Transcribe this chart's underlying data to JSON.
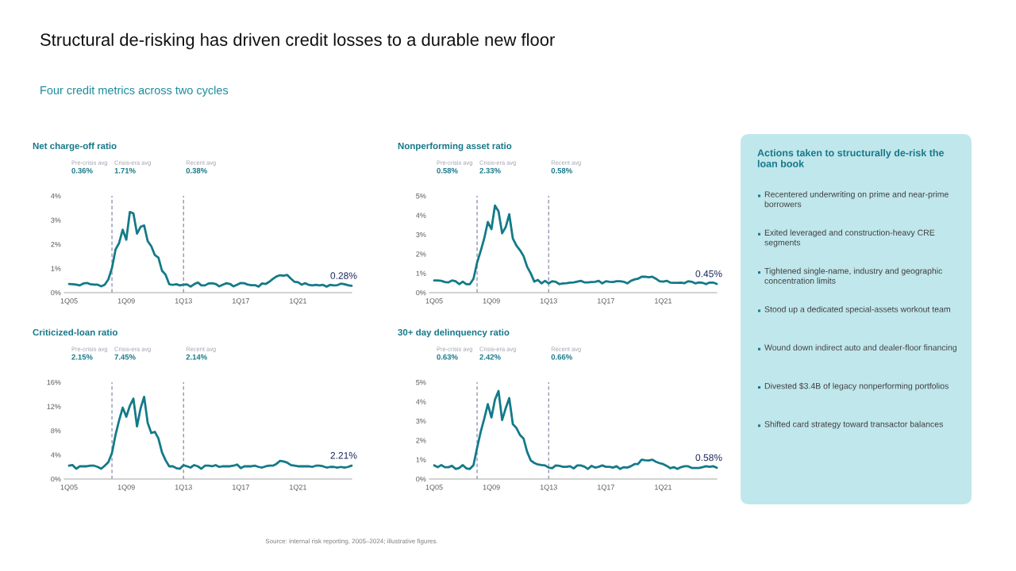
{
  "chart_data": [
    {
      "type": "other",
      "title": "Structural de-risking has driven credit losses to a durable new floor",
      "subtitle": "Four credit metrics across two cycles",
      "annotations": [
        "Source: internal risk reporting, 2005–2024; illustrative figures."
      ]
    },
    {
      "type": "line",
      "title": "Net charge-off ratio",
      "x": [
        "2005-01",
        "2005-04",
        "2005-07",
        "2005-10",
        "2006-01",
        "2006-04",
        "2006-07",
        "2006-10",
        "2007-01",
        "2007-04",
        "2007-07",
        "2007-10",
        "2008-01",
        "2008-04",
        "2008-07",
        "2008-10",
        "2009-01",
        "2009-04",
        "2009-07",
        "2009-10",
        "2010-01",
        "2010-04",
        "2010-07",
        "2010-10",
        "2011-01",
        "2011-04",
        "2011-07",
        "2011-10",
        "2012-01",
        "2012-04",
        "2012-07",
        "2012-10",
        "2013-01",
        "2013-04",
        "2013-07",
        "2013-10",
        "2014-01",
        "2014-04",
        "2014-07",
        "2014-10",
        "2015-01",
        "2015-04",
        "2015-07",
        "2015-10",
        "2016-01",
        "2016-04",
        "2016-07",
        "2016-10",
        "2017-01",
        "2017-04",
        "2017-07",
        "2017-10",
        "2018-01",
        "2018-04",
        "2018-07",
        "2018-10",
        "2019-01",
        "2019-04",
        "2019-07",
        "2019-10",
        "2020-01",
        "2020-04",
        "2020-07",
        "2020-10",
        "2021-01",
        "2021-04",
        "2021-07",
        "2021-10",
        "2022-01",
        "2022-04",
        "2022-07",
        "2022-10",
        "2023-01",
        "2023-04",
        "2023-07",
        "2023-10",
        "2024-01",
        "2024-04",
        "2024-07",
        "2024-10"
      ],
      "values": [
        0.36,
        0.35,
        0.33,
        0.3,
        0.38,
        0.4,
        0.35,
        0.33,
        0.33,
        0.26,
        0.33,
        0.55,
        1.02,
        1.78,
        2.05,
        2.6,
        2.19,
        3.33,
        3.28,
        2.44,
        2.72,
        2.78,
        2.13,
        1.92,
        1.55,
        1.45,
        0.91,
        0.74,
        0.35,
        0.32,
        0.35,
        0.3,
        0.33,
        0.34,
        0.25,
        0.35,
        0.42,
        0.3,
        0.3,
        0.38,
        0.39,
        0.36,
        0.26,
        0.33,
        0.39,
        0.36,
        0.26,
        0.33,
        0.4,
        0.39,
        0.33,
        0.31,
        0.31,
        0.25,
        0.38,
        0.36,
        0.45,
        0.57,
        0.67,
        0.72,
        0.7,
        0.73,
        0.58,
        0.45,
        0.43,
        0.33,
        0.39,
        0.32,
        0.3,
        0.32,
        0.3,
        0.32,
        0.25,
        0.32,
        0.3,
        0.31,
        0.37,
        0.35,
        0.31,
        0.28
      ],
      "color": "#137a88",
      "xlim": [
        "2004-09",
        "2024-10"
      ],
      "xticks": [
        {
          "value": "2005-01",
          "label": "1Q05"
        },
        {
          "value": "2009-01",
          "label": "1Q09"
        },
        {
          "value": "2013-01",
          "label": "1Q13"
        },
        {
          "value": "2017-01",
          "label": "1Q17"
        },
        {
          "value": "2021-01",
          "label": "1Q21"
        }
      ],
      "ylim": [
        0,
        4
      ],
      "yticks": [
        {
          "value": 0,
          "label": "0%"
        },
        {
          "value": 1,
          "label": "1%"
        },
        {
          "value": 2,
          "label": "2%"
        },
        {
          "value": 3,
          "label": "3%"
        },
        {
          "value": 4,
          "label": "4%"
        }
      ],
      "ref_lines": [
        {
          "axis": "x",
          "value": "2008-01",
          "color": "#8a8aa6",
          "line_style": "dashed"
        },
        {
          "axis": "x",
          "value": "2013-01",
          "color": "#8a8aa6",
          "line_style": "dashed"
        }
      ],
      "annotations": [
        "Pre-crisis avg",
        "0.36%",
        "Crisis-era avg",
        "1.71%",
        "Recent avg",
        "0.38%",
        {
          "text": "0.28%",
          "x": "2024-10",
          "y": 0.28
        }
      ]
    },
    {
      "type": "line",
      "title": "Nonperforming asset ratio",
      "x": [
        "2005-01",
        "2005-04",
        "2005-07",
        "2005-10",
        "2006-01",
        "2006-04",
        "2006-07",
        "2006-10",
        "2007-01",
        "2007-04",
        "2007-07",
        "2007-10",
        "2008-01",
        "2008-04",
        "2008-07",
        "2008-10",
        "2009-01",
        "2009-04",
        "2009-07",
        "2009-10",
        "2010-01",
        "2010-04",
        "2010-07",
        "2010-10",
        "2011-01",
        "2011-04",
        "2011-07",
        "2011-10",
        "2012-01",
        "2012-04",
        "2012-07",
        "2012-10",
        "2013-01",
        "2013-04",
        "2013-07",
        "2013-10",
        "2014-01",
        "2014-04",
        "2014-07",
        "2014-10",
        "2015-01",
        "2015-04",
        "2015-07",
        "2015-10",
        "2016-01",
        "2016-04",
        "2016-07",
        "2016-10",
        "2017-01",
        "2017-04",
        "2017-07",
        "2017-10",
        "2018-01",
        "2018-04",
        "2018-07",
        "2018-10",
        "2019-01",
        "2019-04",
        "2019-07",
        "2019-10",
        "2020-01",
        "2020-04",
        "2020-07",
        "2020-10",
        "2021-01",
        "2021-04",
        "2021-07",
        "2021-10",
        "2022-01",
        "2022-04",
        "2022-07",
        "2022-10",
        "2023-01",
        "2023-04",
        "2023-07",
        "2023-10",
        "2024-01",
        "2024-04",
        "2024-07",
        "2024-10"
      ],
      "values": [
        0.63,
        0.63,
        0.61,
        0.55,
        0.53,
        0.63,
        0.59,
        0.44,
        0.57,
        0.44,
        0.44,
        0.72,
        1.55,
        2.15,
        2.8,
        3.65,
        3.28,
        4.5,
        4.2,
        3.07,
        3.39,
        4.05,
        2.8,
        2.43,
        2.19,
        1.89,
        1.34,
        1.0,
        0.57,
        0.66,
        0.48,
        0.61,
        0.48,
        0.59,
        0.56,
        0.44,
        0.48,
        0.49,
        0.52,
        0.53,
        0.57,
        0.61,
        0.53,
        0.53,
        0.55,
        0.56,
        0.61,
        0.48,
        0.59,
        0.56,
        0.55,
        0.59,
        0.59,
        0.56,
        0.48,
        0.61,
        0.68,
        0.72,
        0.82,
        0.82,
        0.79,
        0.82,
        0.72,
        0.59,
        0.57,
        0.61,
        0.52,
        0.51,
        0.51,
        0.52,
        0.49,
        0.59,
        0.56,
        0.48,
        0.53,
        0.51,
        0.44,
        0.52,
        0.52,
        0.45
      ],
      "color": "#137a88",
      "xlim": [
        "2004-09",
        "2024-10"
      ],
      "xticks": [
        {
          "value": "2005-01",
          "label": "1Q05"
        },
        {
          "value": "2009-01",
          "label": "1Q09"
        },
        {
          "value": "2013-01",
          "label": "1Q13"
        },
        {
          "value": "2017-01",
          "label": "1Q17"
        },
        {
          "value": "2021-01",
          "label": "1Q21"
        }
      ],
      "ylim": [
        0,
        5
      ],
      "yticks": [
        {
          "value": 0,
          "label": "0%"
        },
        {
          "value": 1,
          "label": "1%"
        },
        {
          "value": 2,
          "label": "2%"
        },
        {
          "value": 3,
          "label": "3%"
        },
        {
          "value": 4,
          "label": "4%"
        },
        {
          "value": 5,
          "label": "5%"
        }
      ],
      "ref_lines": [
        {
          "axis": "x",
          "value": "2008-01",
          "color": "#8a8aa6",
          "line_style": "dashed"
        },
        {
          "axis": "x",
          "value": "2013-01",
          "color": "#8a8aa6",
          "line_style": "dashed"
        }
      ],
      "annotations": [
        "Pre-crisis avg",
        "0.58%",
        "Crisis-era avg",
        "2.33%",
        "Recent avg",
        "0.58%",
        {
          "text": "0.45%",
          "x": "2024-10",
          "y": 0.45
        }
      ]
    },
    {
      "type": "line",
      "title": "Criticized-loan ratio",
      "x": [
        "2005-01",
        "2005-04",
        "2005-07",
        "2005-10",
        "2006-01",
        "2006-04",
        "2006-07",
        "2006-10",
        "2007-01",
        "2007-04",
        "2007-07",
        "2007-10",
        "2008-01",
        "2008-04",
        "2008-07",
        "2008-10",
        "2009-01",
        "2009-04",
        "2009-07",
        "2009-10",
        "2010-01",
        "2010-04",
        "2010-07",
        "2010-10",
        "2011-01",
        "2011-04",
        "2011-07",
        "2011-10",
        "2012-01",
        "2012-04",
        "2012-07",
        "2012-10",
        "2013-01",
        "2013-04",
        "2013-07",
        "2013-10",
        "2014-01",
        "2014-04",
        "2014-07",
        "2014-10",
        "2015-01",
        "2015-04",
        "2015-07",
        "2015-10",
        "2016-01",
        "2016-04",
        "2016-07",
        "2016-10",
        "2017-01",
        "2017-04",
        "2017-07",
        "2017-10",
        "2018-01",
        "2018-04",
        "2018-07",
        "2018-10",
        "2019-01",
        "2019-04",
        "2019-07",
        "2019-10",
        "2020-01",
        "2020-04",
        "2020-07",
        "2020-10",
        "2021-01",
        "2021-04",
        "2021-07",
        "2021-10",
        "2022-01",
        "2022-04",
        "2022-07",
        "2022-10",
        "2023-01",
        "2023-04",
        "2023-07",
        "2023-10",
        "2024-01",
        "2024-04",
        "2024-07",
        "2024-10"
      ],
      "values": [
        2.2,
        2.3,
        1.7,
        2.1,
        2.1,
        2.1,
        2.2,
        2.2,
        2.0,
        1.7,
        2.2,
        2.8,
        4.3,
        7.3,
        9.7,
        11.8,
        10.3,
        12.1,
        13.3,
        8.7,
        11.7,
        13.6,
        9.3,
        7.6,
        7.8,
        6.7,
        4.4,
        3.1,
        2.1,
        2.1,
        1.8,
        1.7,
        2.3,
        2.1,
        1.9,
        2.3,
        2.1,
        1.7,
        2.2,
        2.2,
        2.1,
        2.3,
        2.0,
        2.1,
        2.1,
        2.1,
        2.2,
        2.4,
        1.8,
        2.1,
        2.1,
        2.1,
        2.2,
        2.0,
        1.9,
        2.1,
        2.2,
        2.2,
        2.5,
        3.0,
        2.9,
        2.7,
        2.3,
        2.2,
        2.1,
        2.1,
        2.1,
        2.1,
        2.0,
        2.2,
        2.2,
        2.1,
        1.9,
        2.0,
        2.0,
        1.9,
        2.0,
        1.9,
        2.0,
        2.21
      ],
      "color": "#137a88",
      "xlim": [
        "2004-09",
        "2024-10"
      ],
      "xticks": [
        {
          "value": "2005-01",
          "label": "1Q05"
        },
        {
          "value": "2009-01",
          "label": "1Q09"
        },
        {
          "value": "2013-01",
          "label": "1Q13"
        },
        {
          "value": "2017-01",
          "label": "1Q17"
        },
        {
          "value": "2021-01",
          "label": "1Q21"
        }
      ],
      "ylim": [
        0,
        16
      ],
      "yticks": [
        {
          "value": 0,
          "label": "0%"
        },
        {
          "value": 4,
          "label": "4%"
        },
        {
          "value": 8,
          "label": "8%"
        },
        {
          "value": 12,
          "label": "12%"
        },
        {
          "value": 16,
          "label": "16%"
        }
      ],
      "ref_lines": [
        {
          "axis": "x",
          "value": "2008-01",
          "color": "#8a8aa6",
          "line_style": "dashed"
        },
        {
          "axis": "x",
          "value": "2013-01",
          "color": "#8a8aa6",
          "line_style": "dashed"
        }
      ],
      "annotations": [
        "Pre-crisis avg",
        "2.15%",
        "Crisis-era avg",
        "7.45%",
        "Recent avg",
        "2.14%",
        {
          "text": "2.21%",
          "x": "2024-10",
          "y": 2.21
        }
      ]
    },
    {
      "type": "line",
      "title": "30+ day delinquency ratio",
      "x": [
        "2005-01",
        "2005-04",
        "2005-07",
        "2005-10",
        "2006-01",
        "2006-04",
        "2006-07",
        "2006-10",
        "2007-01",
        "2007-04",
        "2007-07",
        "2007-10",
        "2008-01",
        "2008-04",
        "2008-07",
        "2008-10",
        "2009-01",
        "2009-04",
        "2009-07",
        "2009-10",
        "2010-01",
        "2010-04",
        "2010-07",
        "2010-10",
        "2011-01",
        "2011-04",
        "2011-07",
        "2011-10",
        "2012-01",
        "2012-04",
        "2012-07",
        "2012-10",
        "2013-01",
        "2013-04",
        "2013-07",
        "2013-10",
        "2014-01",
        "2014-04",
        "2014-07",
        "2014-10",
        "2015-01",
        "2015-04",
        "2015-07",
        "2015-10",
        "2016-01",
        "2016-04",
        "2016-07",
        "2016-10",
        "2017-01",
        "2017-04",
        "2017-07",
        "2017-10",
        "2018-01",
        "2018-04",
        "2018-07",
        "2018-10",
        "2019-01",
        "2019-04",
        "2019-07",
        "2019-10",
        "2020-01",
        "2020-04",
        "2020-07",
        "2020-10",
        "2021-01",
        "2021-04",
        "2021-07",
        "2021-10",
        "2022-01",
        "2022-04",
        "2022-07",
        "2022-10",
        "2023-01",
        "2023-04",
        "2023-07",
        "2023-10",
        "2024-01",
        "2024-04",
        "2024-07",
        "2024-10"
      ],
      "values": [
        0.71,
        0.61,
        0.72,
        0.61,
        0.61,
        0.68,
        0.52,
        0.57,
        0.72,
        0.55,
        0.52,
        0.72,
        1.61,
        2.43,
        3.11,
        3.87,
        3.18,
        4.1,
        4.55,
        3.05,
        3.66,
        4.18,
        2.84,
        2.64,
        2.27,
        2.09,
        1.41,
        0.96,
        0.83,
        0.75,
        0.72,
        0.7,
        0.59,
        0.56,
        0.7,
        0.68,
        0.63,
        0.63,
        0.66,
        0.55,
        0.7,
        0.7,
        0.64,
        0.52,
        0.68,
        0.59,
        0.63,
        0.7,
        0.63,
        0.63,
        0.59,
        0.66,
        0.52,
        0.61,
        0.59,
        0.66,
        0.77,
        0.77,
        1.0,
        0.97,
        0.96,
        1.0,
        0.89,
        0.82,
        0.77,
        0.68,
        0.56,
        0.61,
        0.52,
        0.61,
        0.66,
        0.66,
        0.57,
        0.57,
        0.57,
        0.61,
        0.66,
        0.63,
        0.66,
        0.58
      ],
      "color": "#137a88",
      "xlim": [
        "2004-09",
        "2024-10"
      ],
      "xticks": [
        {
          "value": "2005-01",
          "label": "1Q05"
        },
        {
          "value": "2009-01",
          "label": "1Q09"
        },
        {
          "value": "2013-01",
          "label": "1Q13"
        },
        {
          "value": "2017-01",
          "label": "1Q17"
        },
        {
          "value": "2021-01",
          "label": "1Q21"
        }
      ],
      "ylim": [
        0,
        5
      ],
      "yticks": [
        {
          "value": 0,
          "label": "0%"
        },
        {
          "value": 1,
          "label": "1%"
        },
        {
          "value": 2,
          "label": "2%"
        },
        {
          "value": 3,
          "label": "3%"
        },
        {
          "value": 4,
          "label": "4%"
        },
        {
          "value": 5,
          "label": "5%"
        }
      ],
      "ref_lines": [
        {
          "axis": "x",
          "value": "2008-01",
          "color": "#8a8aa6",
          "line_style": "dashed"
        },
        {
          "axis": "x",
          "value": "2013-01",
          "color": "#8a8aa6",
          "line_style": "dashed"
        }
      ],
      "annotations": [
        "Pre-crisis avg",
        "0.63%",
        "Crisis-era avg",
        "2.42%",
        "Recent avg",
        "0.66%",
        {
          "text": "0.58%",
          "x": "2024-10",
          "y": 0.58
        }
      ]
    },
    {
      "type": "other",
      "title": "Actions taken to structurally de-risk the loan book",
      "annotations": [
        "Recentered underwriting on prime and near-prime borrowers",
        "Exited leveraged and construction-heavy CRE segments",
        "Tightened single-name, industry and geographic concentration limits",
        "Stood up a dedicated special-assets workout team",
        "Wound down indirect auto and dealer-floor financing",
        "Divested $3.4B of legacy nonperforming portfolios",
        "Shifted card strategy toward transactor balances"
      ]
    }
  ]
}
